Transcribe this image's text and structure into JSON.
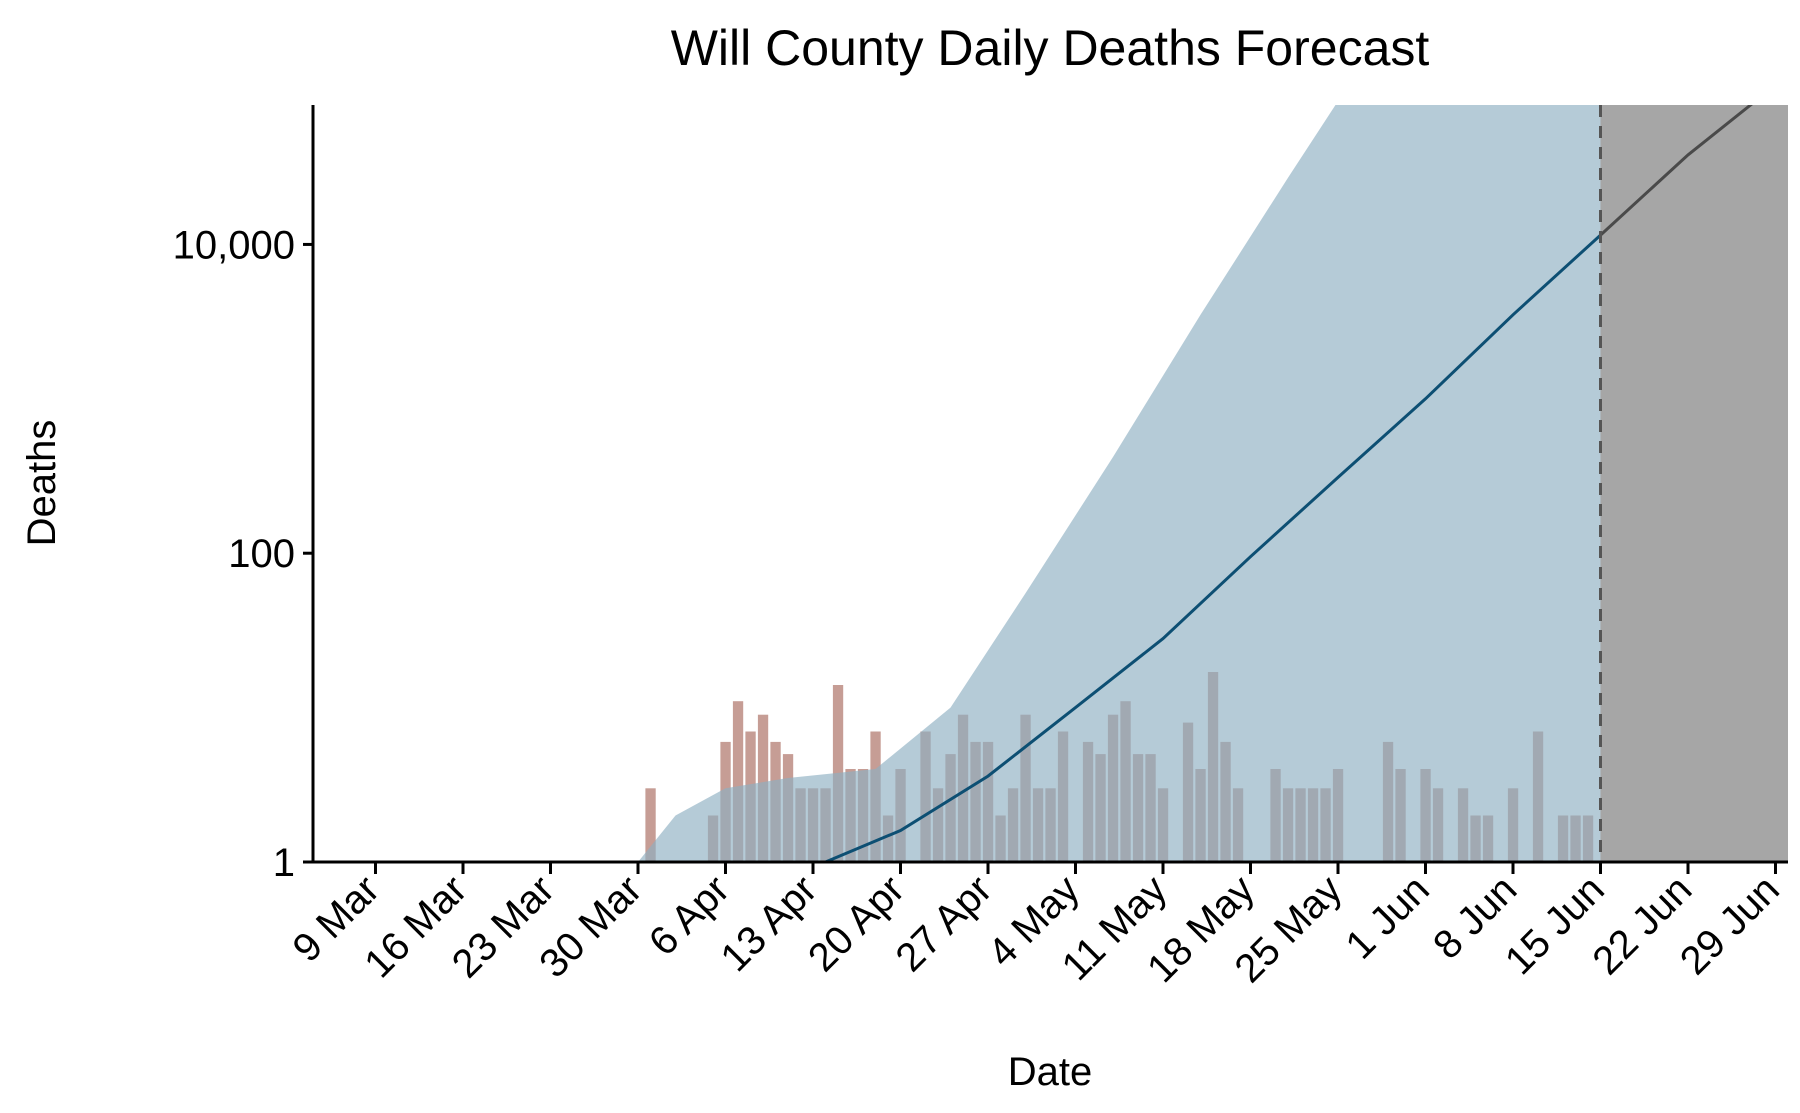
{
  "chart_data": {
    "type": "bar",
    "title": "Will County Daily Deaths Forecast",
    "xlabel": "Date",
    "ylabel": "Deaths",
    "y_scale": "log",
    "ylim": [
      1,
      80000
    ],
    "xlim": [
      "2020-03-04",
      "2020-06-30"
    ],
    "x_ticks": [
      {
        "date": "2020-03-09",
        "label": "9 Mar"
      },
      {
        "date": "2020-03-16",
        "label": "16 Mar"
      },
      {
        "date": "2020-03-23",
        "label": "23 Mar"
      },
      {
        "date": "2020-03-30",
        "label": "30 Mar"
      },
      {
        "date": "2020-04-06",
        "label": "6 Apr"
      },
      {
        "date": "2020-04-13",
        "label": "13 Apr"
      },
      {
        "date": "2020-04-20",
        "label": "20 Apr"
      },
      {
        "date": "2020-04-27",
        "label": "27 Apr"
      },
      {
        "date": "2020-05-04",
        "label": "4 May"
      },
      {
        "date": "2020-05-11",
        "label": "11 May"
      },
      {
        "date": "2020-05-18",
        "label": "18 May"
      },
      {
        "date": "2020-05-25",
        "label": "25 May"
      },
      {
        "date": "2020-06-01",
        "label": "1 Jun"
      },
      {
        "date": "2020-06-08",
        "label": "8 Jun"
      },
      {
        "date": "2020-06-15",
        "label": "15 Jun"
      },
      {
        "date": "2020-06-22",
        "label": "22 Jun"
      },
      {
        "date": "2020-06-29",
        "label": "29 Jun"
      }
    ],
    "y_ticks": [
      {
        "value": 1,
        "label": "1"
      },
      {
        "value": 100,
        "label": "100"
      },
      {
        "value": 10000,
        "label": "10,000"
      }
    ],
    "forecast_start": "2020-06-15",
    "series": [
      {
        "kind": "bars",
        "x": [
          "2020-03-31",
          "2020-04-05",
          "2020-04-06",
          "2020-04-07",
          "2020-04-08",
          "2020-04-09",
          "2020-04-10",
          "2020-04-11",
          "2020-04-12",
          "2020-04-13",
          "2020-04-14",
          "2020-04-15",
          "2020-04-16",
          "2020-04-17",
          "2020-04-18",
          "2020-04-19",
          "2020-04-20",
          "2020-04-22",
          "2020-04-23",
          "2020-04-24",
          "2020-04-25",
          "2020-04-26",
          "2020-04-27",
          "2020-04-28",
          "2020-04-29",
          "2020-04-30",
          "2020-05-01",
          "2020-05-02",
          "2020-05-03",
          "2020-05-05",
          "2020-05-06",
          "2020-05-07",
          "2020-05-08",
          "2020-05-09",
          "2020-05-10",
          "2020-05-11",
          "2020-05-13",
          "2020-05-14",
          "2020-05-15",
          "2020-05-16",
          "2020-05-17",
          "2020-05-20",
          "2020-05-21",
          "2020-05-22",
          "2020-05-23",
          "2020-05-24",
          "2020-05-25",
          "2020-05-29",
          "2020-05-30",
          "2020-06-01",
          "2020-06-02",
          "2020-06-04",
          "2020-06-05",
          "2020-06-06",
          "2020-06-08",
          "2020-06-10",
          "2020-06-12",
          "2020-06-13",
          "2020-06-14"
        ],
        "values": [
          3,
          2,
          6,
          11,
          7,
          9,
          6,
          5,
          3,
          3,
          3,
          14,
          4,
          4,
          7,
          2,
          4,
          7,
          3,
          5,
          9,
          6,
          6,
          2,
          3,
          9,
          3,
          3,
          7,
          6,
          5,
          9,
          11,
          5,
          5,
          3,
          8,
          4,
          17,
          6,
          3,
          4,
          3,
          3,
          3,
          3,
          4,
          6,
          4,
          4,
          3,
          3,
          2,
          2,
          3,
          7,
          2,
          2,
          2
        ]
      },
      {
        "kind": "band",
        "x": [
          "2020-03-30",
          "2020-04-02",
          "2020-04-06",
          "2020-04-11",
          "2020-04-18",
          "2020-04-24",
          "2020-04-30",
          "2020-05-07",
          "2020-05-14",
          "2020-05-21",
          "2020-05-28",
          "2020-06-04",
          "2020-06-11",
          "2020-06-15"
        ],
        "lower": [
          1,
          1,
          1,
          1,
          1,
          1,
          1,
          1,
          1,
          1,
          1,
          1,
          1,
          1
        ],
        "upper": [
          1,
          2,
          3,
          3.5,
          4,
          10,
          55,
          420,
          3500,
          27000,
          200000,
          1500000,
          11000000,
          40000000
        ]
      },
      {
        "kind": "line",
        "x": [
          "2020-04-14",
          "2020-04-20",
          "2020-04-27",
          "2020-05-04",
          "2020-05-11",
          "2020-05-18",
          "2020-05-25",
          "2020-06-01",
          "2020-06-08",
          "2020-06-15",
          "2020-06-22",
          "2020-06-30"
        ],
        "values": [
          1,
          1.6,
          3.6,
          10,
          28,
          95,
          310,
          1000,
          3500,
          11500,
          38000,
          125000
        ]
      }
    ]
  }
}
